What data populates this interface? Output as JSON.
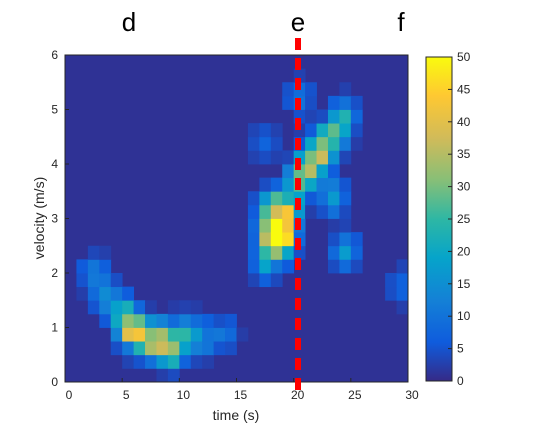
{
  "panel_labels": [
    "d",
    "e",
    "f"
  ],
  "chart_data": {
    "type": "heatmap",
    "xlabel": "time (s)",
    "ylabel": "velocity (m/s)",
    "xlim": [
      0,
      30
    ],
    "ylim": [
      0,
      6
    ],
    "x_ticks": [
      0,
      5,
      10,
      15,
      20,
      25,
      30
    ],
    "y_ticks": [
      0,
      1,
      2,
      3,
      4,
      5,
      6
    ],
    "colorbar": {
      "min": 0,
      "max": 50,
      "ticks": [
        0,
        5,
        10,
        15,
        20,
        25,
        30,
        35,
        40,
        45,
        50
      ],
      "colormap": "parula"
    },
    "marker_line": {
      "x": 20,
      "color": "#ff0000",
      "style": "dashed"
    },
    "grid": false,
    "cell_width_x": 1,
    "cell_height_y": 0.25,
    "background_value": 1,
    "blobs": [
      {
        "x": 2.5,
        "y": 2.0,
        "value": 11
      },
      {
        "x": 3.5,
        "y": 1.6,
        "value": 10
      },
      {
        "x": 4.5,
        "y": 1.4,
        "value": 12
      },
      {
        "x": 5.5,
        "y": 1.1,
        "value": 20
      },
      {
        "x": 6.0,
        "y": 0.9,
        "value": 25
      },
      {
        "x": 7.5,
        "y": 0.8,
        "value": 21
      },
      {
        "x": 8.5,
        "y": 0.75,
        "value": 26
      },
      {
        "x": 9.5,
        "y": 0.6,
        "value": 23
      },
      {
        "x": 10.5,
        "y": 0.9,
        "value": 15
      },
      {
        "x": 12.0,
        "y": 0.8,
        "value": 12
      },
      {
        "x": 14.0,
        "y": 0.9,
        "value": 8
      },
      {
        "x": 17.5,
        "y": 2.2,
        "value": 17
      },
      {
        "x": 18.0,
        "y": 2.7,
        "value": 42
      },
      {
        "x": 19.0,
        "y": 2.6,
        "value": 37
      },
      {
        "x": 18.0,
        "y": 3.2,
        "value": 26
      },
      {
        "x": 19.5,
        "y": 3.1,
        "value": 30
      },
      {
        "x": 20.5,
        "y": 3.7,
        "value": 26
      },
      {
        "x": 21.5,
        "y": 4.0,
        "value": 30
      },
      {
        "x": 22.5,
        "y": 4.3,
        "value": 22
      },
      {
        "x": 23.5,
        "y": 4.5,
        "value": 21
      },
      {
        "x": 24.5,
        "y": 4.9,
        "value": 17
      },
      {
        "x": 23.5,
        "y": 3.4,
        "value": 16
      },
      {
        "x": 24.5,
        "y": 2.4,
        "value": 14
      },
      {
        "x": 20.5,
        "y": 5.2,
        "value": 10
      },
      {
        "x": 17.5,
        "y": 4.4,
        "value": 8
      },
      {
        "x": 29.5,
        "y": 1.8,
        "value": 8
      }
    ]
  }
}
